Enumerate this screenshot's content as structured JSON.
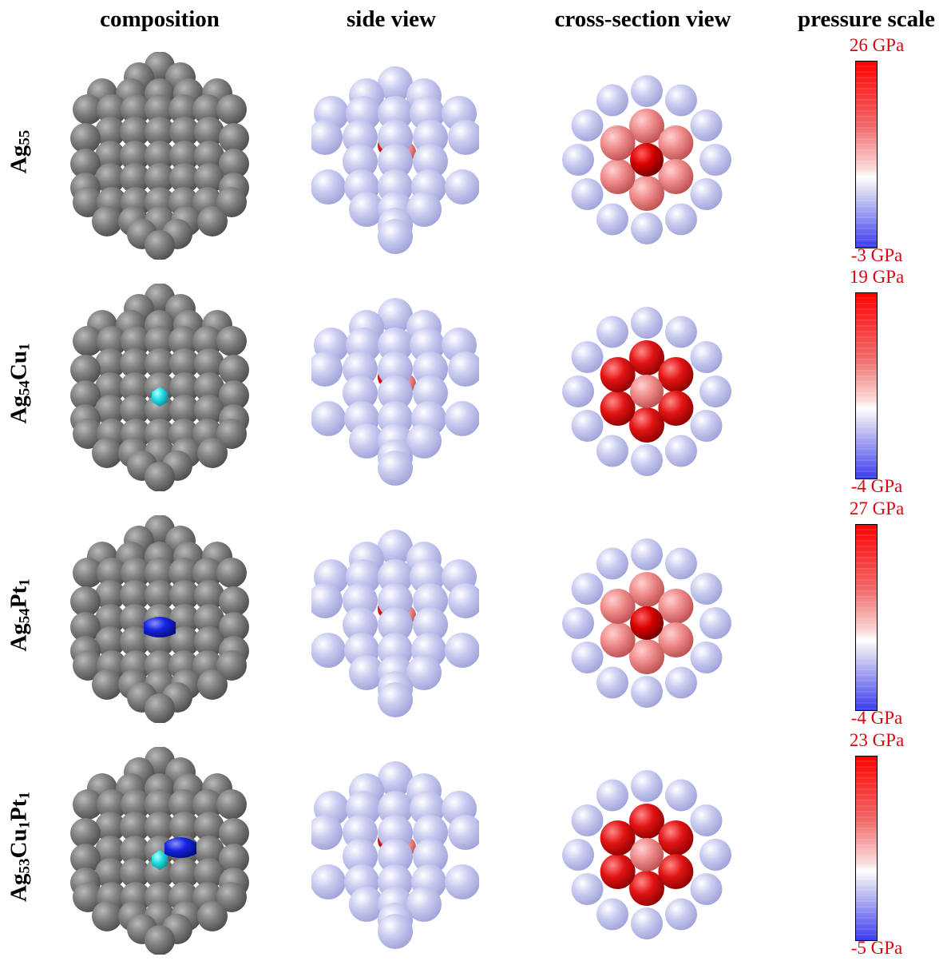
{
  "headers": {
    "composition": "composition",
    "side_view": "side view",
    "cross_section": "cross-section view",
    "pressure_scale": "pressure scale"
  },
  "rows": [
    {
      "label": {
        "base": "Ag",
        "n1": "55"
      },
      "scale": {
        "max": "26 GPa",
        "min": "-3 GPa",
        "max_gpa": 26,
        "min_gpa": -3
      },
      "composition_dopants": [],
      "cross_center": "#e60000",
      "cross_inner": "#f07a7a"
    },
    {
      "label": {
        "base": "Ag",
        "n1": "54",
        "el2": "Cu",
        "n2": "1"
      },
      "scale": {
        "max": "19 GPa",
        "min": "-4 GPa",
        "max_gpa": 19,
        "min_gpa": -4
      },
      "composition_dopants": [
        "cyan"
      ],
      "cross_center": "#f29a9a",
      "cross_inner": "#e41f1f"
    },
    {
      "label": {
        "base": "Ag",
        "n1": "54",
        "el2": "Pt",
        "n2": "1"
      },
      "scale": {
        "max": "27 GPa",
        "min": "-4 GPa",
        "max_gpa": 27,
        "min_gpa": -4
      },
      "composition_dopants": [
        "blue"
      ],
      "cross_center": "#e60000",
      "cross_inner": "#f07a7a"
    },
    {
      "label": {
        "base": "Ag",
        "n1": "53",
        "el2": "Cu",
        "n2": "1",
        "el3": "Pt",
        "n3": "1"
      },
      "scale": {
        "max": "23 GPa",
        "min": "-5 GPa",
        "max_gpa": 23,
        "min_gpa": -5
      },
      "composition_dopants": [
        "cyan",
        "blue"
      ],
      "cross_center": "#f29a9a",
      "cross_inner": "#e41f1f"
    }
  ],
  "colors": {
    "silver": "#7f7f7f",
    "lavender": "#c7c9ee",
    "cyan": "#22e0e6",
    "blue": "#1420e0",
    "label_red": "#e0000f"
  }
}
